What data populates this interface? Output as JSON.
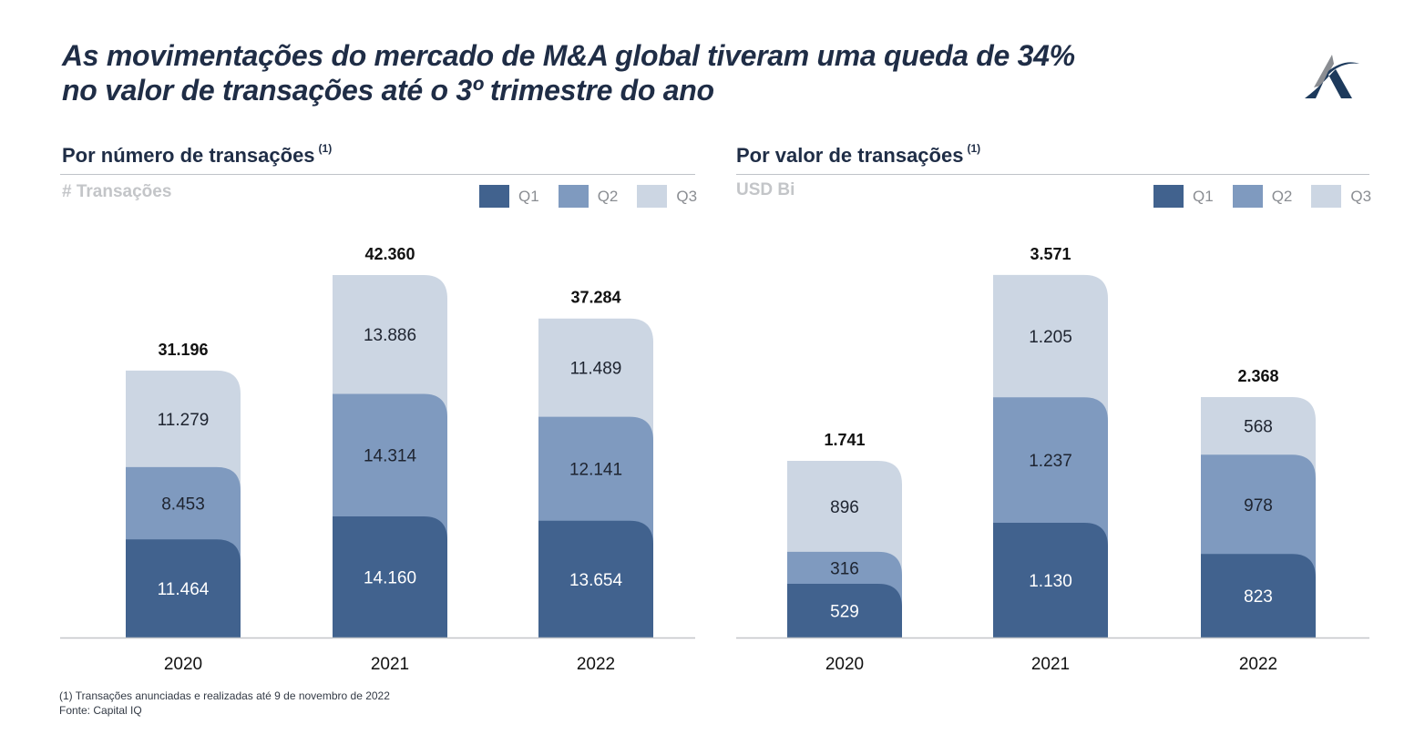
{
  "title_line1": "As movimentações do mercado de M&A global tiveram uma queda de 34%",
  "title_line2": "no valor de transações até o 3º trimestre do ano",
  "logo": "company-logo-a-swoosh",
  "colors": {
    "Q1": "#41628e",
    "Q2": "#7f9abf",
    "Q3": "#ccd6e3",
    "title": "#1f2d46"
  },
  "footnotes": {
    "note1": "(1) Transações anunciadas e realizadas até 9 de novembro de 2022",
    "source": "Fonte: Capital IQ"
  },
  "panels": [
    {
      "title": "Por número de transações",
      "sup": "(1)",
      "unit": "# Transações",
      "legend": [
        "Q1",
        "Q2",
        "Q3"
      ]
    },
    {
      "title": "Por valor de transações",
      "sup": "(1)",
      "unit": "USD Bi",
      "legend": [
        "Q1",
        "Q2",
        "Q3"
      ]
    }
  ],
  "chart_data": [
    {
      "type": "bar",
      "stacked": true,
      "title": "Por número de transações (1)",
      "ylabel": "# Transações",
      "categories": [
        "2020",
        "2021",
        "2022"
      ],
      "series": [
        {
          "name": "Q1",
          "values": [
            11464,
            14160,
            13654
          ],
          "labels": [
            "11.464",
            "14.160",
            "13.654"
          ]
        },
        {
          "name": "Q2",
          "values": [
            8453,
            14314,
            12141
          ],
          "labels": [
            "8.453",
            "14.314",
            "12.141"
          ]
        },
        {
          "name": "Q3",
          "values": [
            11279,
            13886,
            11489
          ],
          "labels": [
            "11.279",
            "13.886",
            "11.489"
          ]
        }
      ],
      "totals": [
        31196,
        42360,
        37284
      ],
      "total_labels": [
        "31.196",
        "42.360",
        "37.284"
      ],
      "ylim": [
        0,
        42360
      ],
      "legend": "top-right",
      "grid": false
    },
    {
      "type": "bar",
      "stacked": true,
      "title": "Por valor de transações (1)",
      "ylabel": "USD Bi",
      "categories": [
        "2020",
        "2021",
        "2022"
      ],
      "series": [
        {
          "name": "Q1",
          "values": [
            529,
            1130,
            823
          ],
          "labels": [
            "529",
            "1.130",
            "823"
          ]
        },
        {
          "name": "Q2",
          "values": [
            316,
            1237,
            978
          ],
          "labels": [
            "316",
            "1.237",
            "978"
          ]
        },
        {
          "name": "Q3",
          "values": [
            896,
            1205,
            568
          ],
          "labels": [
            "896",
            "1.205",
            "568"
          ]
        }
      ],
      "totals": [
        1741,
        3571,
        2368
      ],
      "total_labels": [
        "1.741",
        "3.571",
        "2.368"
      ],
      "ylim": [
        0,
        3571
      ],
      "legend": "top-right",
      "grid": false
    }
  ]
}
